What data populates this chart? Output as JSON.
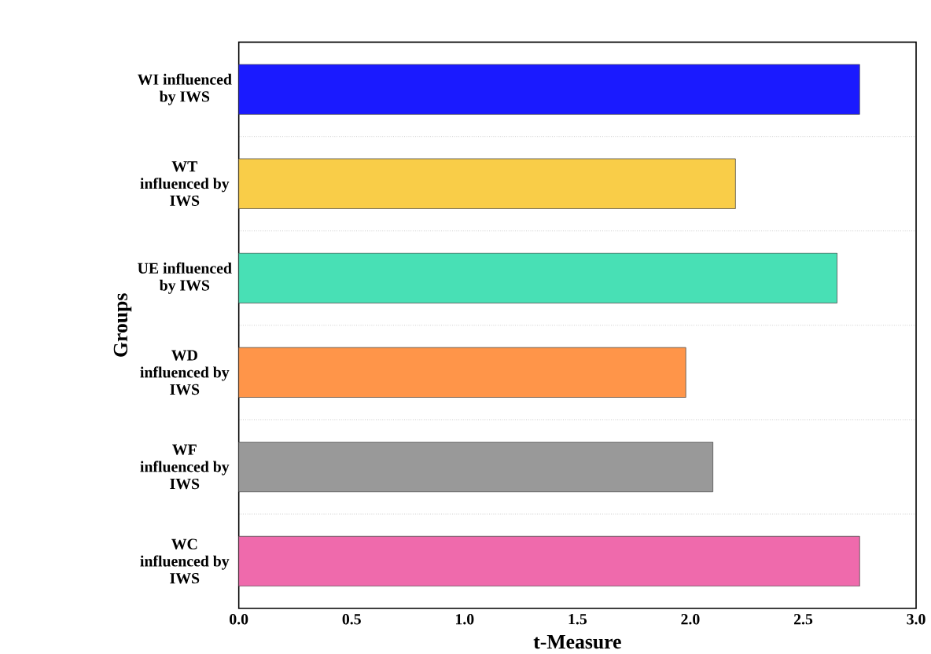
{
  "chart_data": {
    "type": "bar",
    "orientation": "horizontal",
    "xlabel": "t-Measure",
    "ylabel": "Groups",
    "categories": [
      "WI influenced by IWS",
      "WT influenced by IWS",
      "UE influenced by IWS",
      "WD influenced by IWS",
      "WF influenced by IWS",
      "WC influenced by IWS"
    ],
    "values": [
      2.75,
      2.2,
      2.65,
      1.98,
      2.1,
      2.75
    ],
    "colors": [
      "#1a1aff",
      "#f9cd48",
      "#48e0b5",
      "#ff9549",
      "#999999",
      "#ef6aac"
    ],
    "xlim": [
      0,
      3.0
    ],
    "xticks": [
      {
        "value": 0,
        "label": "0.0"
      },
      {
        "value": 0.5,
        "label": "0.5"
      },
      {
        "value": 1,
        "label": "1.0"
      },
      {
        "value": 1.5,
        "label": "1.5"
      },
      {
        "value": 2,
        "label": "2.0"
      },
      {
        "value": 2.5,
        "label": "2.5"
      },
      {
        "value": 3,
        "label": "3.0"
      }
    ],
    "grid": "y"
  }
}
